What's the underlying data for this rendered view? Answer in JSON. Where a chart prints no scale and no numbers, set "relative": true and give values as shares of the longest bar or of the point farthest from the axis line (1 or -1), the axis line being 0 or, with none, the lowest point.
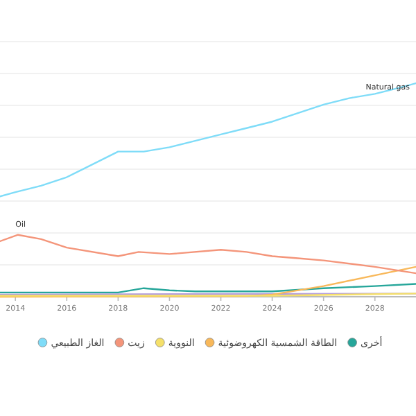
{
  "chart_data": {
    "type": "line",
    "relative": true,
    "grid": "y",
    "legend": "bottom",
    "marker": "none",
    "line_style": "solid",
    "xlim": [
      2013.4,
      2029.6
    ],
    "xticks": [
      2014,
      2016,
      2018,
      2020,
      2022,
      2024,
      2026,
      2028
    ],
    "series": [
      {
        "name": "الغاز الطبيعي",
        "color": "#7fdcf8",
        "x": [
          2013.4,
          2014,
          2015,
          2016,
          2017,
          2018,
          2019,
          2020,
          2021,
          2022,
          2023,
          2024,
          2025,
          2026,
          2027,
          2028,
          2029,
          2029.6
        ],
        "values": [
          0.47,
          0.49,
          0.52,
          0.56,
          0.62,
          0.68,
          0.68,
          0.7,
          0.73,
          0.76,
          0.79,
          0.82,
          0.86,
          0.9,
          0.93,
          0.95,
          0.98,
          1
        ]
      },
      {
        "name": "زيت",
        "color": "#f4957a",
        "x": [
          2013.4,
          2014.1,
          2015,
          2016,
          2018,
          2018.8,
          2020,
          2022,
          2023,
          2024,
          2025,
          2026,
          2028,
          2029.6
        ],
        "values": [
          0.26,
          0.29,
          0.27,
          0.23,
          0.19,
          0.21,
          0.2,
          0.22,
          0.21,
          0.19,
          0.18,
          0.17,
          0.14,
          0.11
        ]
      },
      {
        "name": "النووية",
        "color": "#f5e06a",
        "x": [
          2013.4,
          2024,
          2029.6
        ],
        "values": [
          0.005,
          0.005,
          0.015
        ]
      },
      {
        "name": "الطاقة الشمسية الكهروضوئية",
        "color": "#f8b85a",
        "x": [
          2013.4,
          2023,
          2024,
          2026,
          2028,
          2029.6
        ],
        "values": [
          0,
          0.003,
          0.01,
          0.05,
          0.1,
          0.14
        ]
      },
      {
        "name": "أخرى",
        "color": "#26a69a",
        "x": [
          2013.4,
          2018,
          2019,
          2020,
          2021,
          2024,
          2026,
          2028,
          2029.6
        ],
        "values": [
          0.02,
          0.02,
          0.04,
          0.03,
          0.025,
          0.025,
          0.04,
          0.05,
          0.06
        ]
      },
      {
        "color": "#b39ddb",
        "x": [
          2013.4,
          2029.6
        ],
        "values": [
          0.01,
          0.015
        ]
      }
    ],
    "annotations": [
      {
        "text": "Natural gas",
        "x": 2028.5,
        "y": 0.95
      },
      {
        "text": "Oil",
        "x": 2014.2,
        "y": 0.31
      }
    ]
  }
}
